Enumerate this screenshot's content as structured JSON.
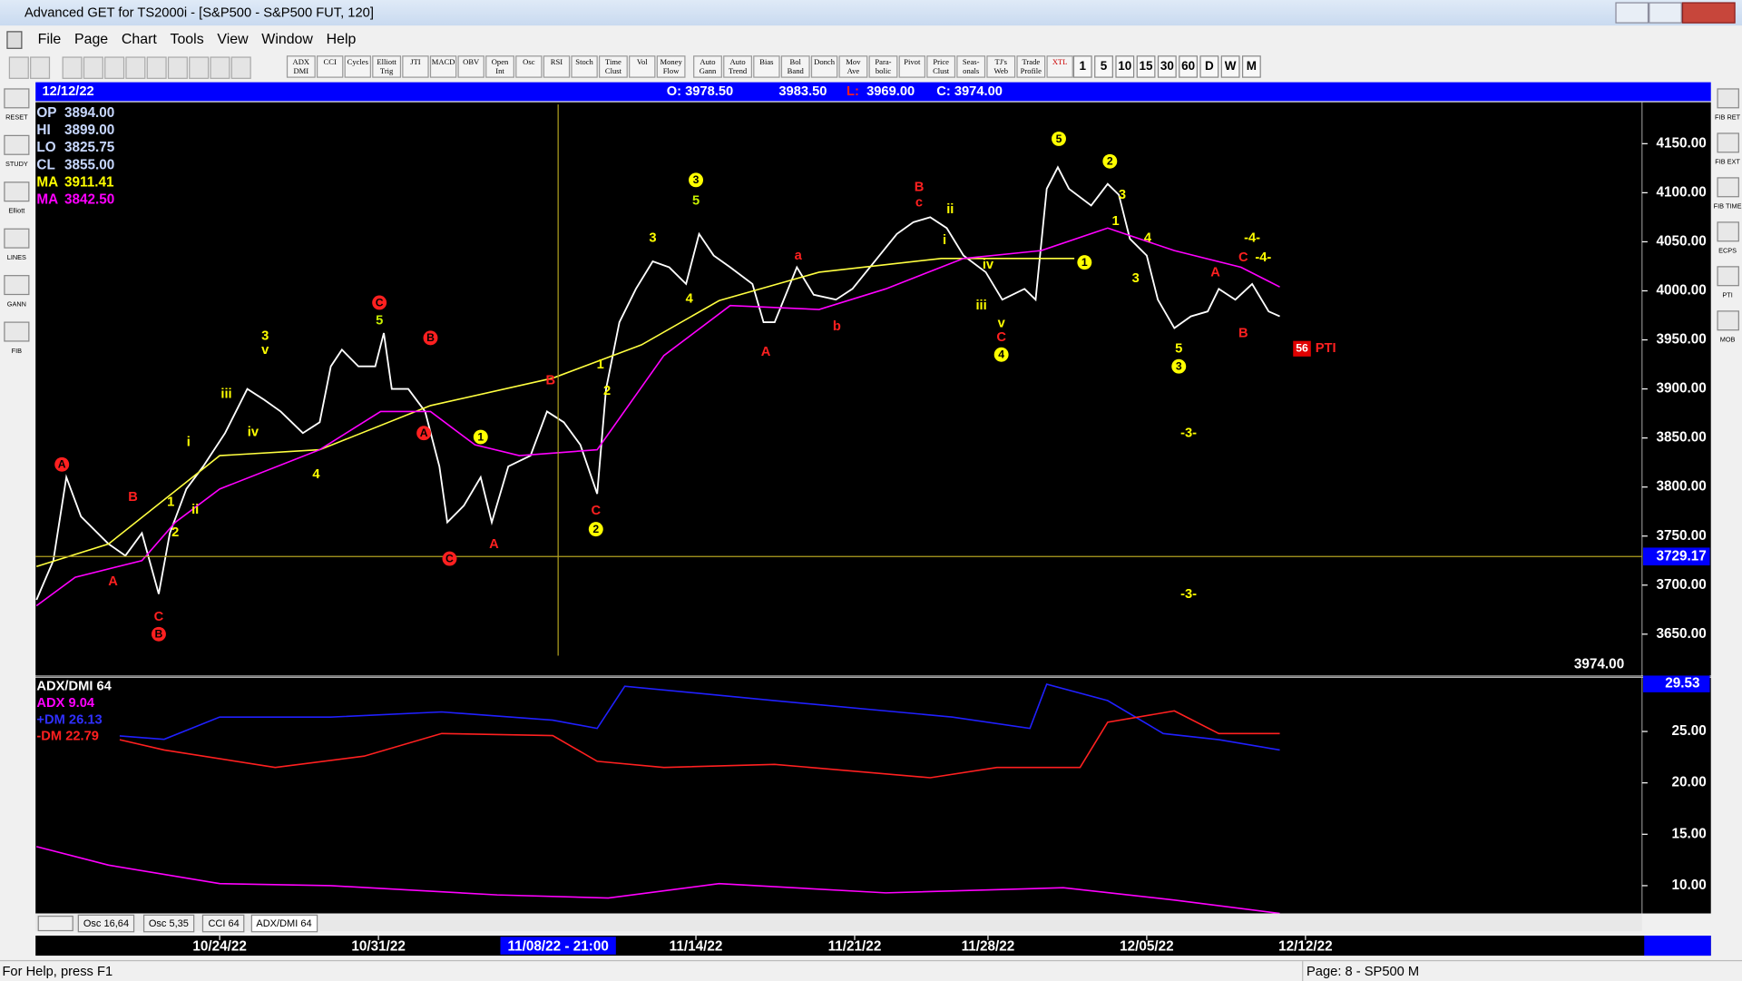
{
  "window": {
    "title": "Advanced GET for TS2000i - [S&P500 - S&P500 FUT, 120]"
  },
  "menu": [
    "File",
    "Page",
    "Chart",
    "Tools",
    "View",
    "Window",
    "Help"
  ],
  "toolbar": [
    "ADX DMI",
    "CCI",
    "Cycles",
    "Elliott Trig",
    "JTI",
    "MACD",
    "OBV",
    "Open Int",
    "Osc",
    "RSI",
    "Stoch",
    "Time Clust",
    "Vol",
    "Money Flow",
    "Auto Gann",
    "Auto Trend",
    "Bias",
    "Bol Band",
    "Donch",
    "Mov Ave",
    "Para-bolic",
    "Pivot",
    "Price Clust",
    "Seas-onals",
    "TJ's Web",
    "Trade Profile",
    "XTL"
  ],
  "intervals": [
    "1",
    "5",
    "10",
    "15",
    "30",
    "60",
    "D",
    "W",
    "M"
  ],
  "header": {
    "date": "12/12/22",
    "open": "O: 3978.50",
    "high": "3983.50",
    "low_label": "L:",
    "low": "3969.00",
    "close": "C: 3974.00"
  },
  "info": [
    {
      "label": "OP",
      "value": "3894.00",
      "color": "#c8d8ff"
    },
    {
      "label": "HI",
      "value": "3899.00",
      "color": "#c8d8ff"
    },
    {
      "label": "LO",
      "value": "3825.75",
      "color": "#c8d8ff"
    },
    {
      "label": "CL",
      "value": "3855.00",
      "color": "#c8d8ff"
    },
    {
      "label": "MA",
      "value": "3911.41",
      "color": "#ffff00"
    },
    {
      "label": "MA",
      "value": "3842.50",
      "color": "#ff00ff"
    }
  ],
  "indicator_info": [
    {
      "text": "ADX/DMI 64",
      "color": "#ffffff"
    },
    {
      "text": "ADX 9.04",
      "color": "#ff00ff"
    },
    {
      "text": "+DM 26.13",
      "color": "#3030ff"
    },
    {
      "text": "-DM 22.79",
      "color": "#ff2020"
    }
  ],
  "tabs": [
    "Osc 16,64",
    "Osc 5,35",
    "CCI 64",
    "ADX/DMI 64"
  ],
  "left_tools": [
    "RESET",
    "STUDY",
    "Elliott",
    "LINES",
    "GANN",
    "FIB"
  ],
  "right_tools": [
    "FIB RET",
    "FIB EXT",
    "FIB TIME",
    "ECPS",
    "PTI",
    "MOB"
  ],
  "status": {
    "left": "For Help, press F1",
    "right": "Page: 8 - SP500 M"
  },
  "chart_data": [
    {
      "type": "line",
      "xlim": [
        -5.8,
        44.8
      ],
      "xticks": [
        {
          "value": 0,
          "label": "10/24/22"
        },
        {
          "value": 5,
          "label": "10/31/22"
        },
        {
          "value": 15,
          "label": "11/14/22"
        },
        {
          "value": 20,
          "label": "11/21/22"
        },
        {
          "value": 24.2,
          "label": "11/28/22"
        },
        {
          "value": 29.2,
          "label": "12/05/22"
        },
        {
          "value": 34.2,
          "label": "12/12/22"
        }
      ],
      "ylim": [
        3610,
        4190
      ],
      "yticks": [
        {
          "value": 4150,
          "label": "4150.00"
        },
        {
          "value": 4100,
          "label": "4100.00"
        },
        {
          "value": 4050,
          "label": "4050.00"
        },
        {
          "value": 4000,
          "label": "4000.00"
        },
        {
          "value": 3950,
          "label": "3950.00"
        },
        {
          "value": 3900,
          "label": "3900.00"
        },
        {
          "value": 3850,
          "label": "3850.00"
        },
        {
          "value": 3800,
          "label": "3800.00"
        },
        {
          "value": 3750,
          "label": "3750.00"
        },
        {
          "value": 3700,
          "label": "3700.00"
        },
        {
          "value": 3650,
          "label": "3650.00"
        }
      ],
      "series": [
        {
          "color": "#ffffff",
          "x": [
            -5.77,
            -5.24,
            -4.83,
            -4.37,
            -3.5,
            -2.97,
            -2.45,
            -1.92,
            -1.57,
            -1.05,
            -0.52,
            0.17,
            0.87,
            1.4,
            1.92,
            2.62,
            3.15,
            3.5,
            3.85,
            4.37,
            4.9,
            5.17,
            5.42,
            5.94,
            6.47,
            6.92,
            7.17,
            7.69,
            8.22,
            8.57,
            9.09,
            9.79,
            10.31,
            10.84,
            11.36,
            11.89,
            12.17,
            12.59,
            13.11,
            13.64,
            14.16,
            14.69,
            15.1,
            15.56,
            16.08,
            16.78,
            17.13,
            17.48,
            18.18,
            18.71,
            19.41,
            19.93,
            20.63,
            21.33,
            21.85,
            22.38,
            22.9,
            23.43,
            24.13,
            24.65,
            25.35,
            25.7,
            26.05,
            26.4,
            26.75,
            27.45,
            27.97,
            28.32,
            28.67,
            29.2,
            29.55,
            30.07,
            30.59,
            31.12,
            31.47,
            31.99,
            32.52,
            33.04,
            33.39
          ],
          "values": [
            3685,
            3725,
            3810,
            3770,
            3742,
            3730,
            3753,
            3691,
            3753,
            3798,
            3821,
            3855,
            3900,
            3889,
            3877,
            3855,
            3866,
            3923,
            3940,
            3923,
            3923,
            3957,
            3900,
            3900,
            3877,
            3821,
            3764,
            3781,
            3810,
            3764,
            3821,
            3832,
            3877,
            3866,
            3843,
            3793,
            3900,
            3968,
            4002,
            4030,
            4024,
            4007,
            4058,
            4036,
            4024,
            4007,
            3968,
            3968,
            4024,
            3996,
            3991,
            4002,
            4030,
            4058,
            4070,
            4075,
            4064,
            4036,
            4019,
            3991,
            4002,
            3991,
            4104,
            4126,
            4104,
            4087,
            4109,
            4098,
            4053,
            4036,
            3991,
            3962,
            3974,
            3979,
            4002,
            3991,
            4007,
            3979,
            3974
          ]
        },
        {
          "color": "#ffff40",
          "x": [
            -5.77,
            -3.5,
            0,
            3.15,
            6.64,
            10.49,
            13.29,
            15.73,
            18.88,
            22.73,
            26.92
          ],
          "values": [
            3719,
            3742,
            3832,
            3838,
            3883,
            3911,
            3945,
            3990,
            4019,
            4033,
            4033
          ]
        },
        {
          "color": "#ff00ff",
          "x": [
            -5.77,
            -4.55,
            -2.45,
            -1.4,
            0,
            3.15,
            5.07,
            6.64,
            8.04,
            9.44,
            11.89,
            13.99,
            16.08,
            18.88,
            20.98,
            23.43,
            25.87,
            27.97,
            30.07,
            32.17,
            33.39
          ],
          "values": [
            3679,
            3708,
            3725,
            3764,
            3798,
            3838,
            3877,
            3877,
            3843,
            3832,
            3838,
            3934,
            3985,
            3981,
            4002,
            4033,
            4041,
            4064,
            4041,
            4024,
            4004
          ]
        }
      ],
      "cursor": {
        "x": {
          "value": 10.66,
          "label": "11/08/22 - 21:00"
        },
        "y": {
          "value": 3729.17,
          "label": "3729.17"
        }
      },
      "last": {
        "value": 3974,
        "label": "3974.00"
      },
      "annotations": [
        {
          "text": "A",
          "color": "#ff2020",
          "x": -4.97,
          "y": 3823,
          "circled": true
        },
        {
          "text": "B",
          "color": "#ff2020",
          "x": -2.73,
          "y": 3790,
          "circled": false
        },
        {
          "text": "A",
          "color": "#ff2020",
          "x": -3.36,
          "y": 3704,
          "circled": false
        },
        {
          "text": "C",
          "color": "#ff2020",
          "x": -1.92,
          "y": 3668,
          "circled": false
        },
        {
          "text": "B",
          "color": "#ff2020",
          "x": -1.92,
          "y": 3650,
          "circled": true
        },
        {
          "text": "1",
          "color": "#ffff00",
          "x": -1.54,
          "y": 3785,
          "circled": false
        },
        {
          "text": "2",
          "color": "#ffff00",
          "x": -1.4,
          "y": 3754,
          "circled": false
        },
        {
          "text": "ii",
          "color": "#ffff00",
          "x": -0.77,
          "y": 3777,
          "circled": false
        },
        {
          "text": "i",
          "color": "#ffff00",
          "x": -0.98,
          "y": 3846,
          "circled": false
        },
        {
          "text": "iii",
          "color": "#ffff00",
          "x": 0.21,
          "y": 3895,
          "circled": false
        },
        {
          "text": "iv",
          "color": "#ffff00",
          "x": 1.05,
          "y": 3856,
          "circled": false
        },
        {
          "text": "3",
          "color": "#ffff00",
          "x": 1.43,
          "y": 3954,
          "circled": false
        },
        {
          "text": "v",
          "color": "#ffff00",
          "x": 1.43,
          "y": 3940,
          "circled": false
        },
        {
          "text": "4",
          "color": "#ffff00",
          "x": 3.04,
          "y": 3813,
          "circled": false
        },
        {
          "text": "C",
          "color": "#ff2020",
          "x": 5.03,
          "y": 3988,
          "circled": true
        },
        {
          "text": "5",
          "color": "#c8f000",
          "x": 5.03,
          "y": 3970,
          "circled": false
        },
        {
          "text": "B",
          "color": "#ff2020",
          "x": 6.64,
          "y": 3952,
          "circled": true
        },
        {
          "text": "A",
          "color": "#ff2020",
          "x": 6.43,
          "y": 3855,
          "circled": true
        },
        {
          "text": "C",
          "color": "#ff2020",
          "x": 7.24,
          "y": 3727,
          "circled": true
        },
        {
          "text": "A",
          "color": "#ff2020",
          "x": 8.64,
          "y": 3742,
          "circled": false
        },
        {
          "text": "1",
          "color": "#ffff00",
          "x": 8.22,
          "y": 3851,
          "circled": true
        },
        {
          "text": "B",
          "color": "#ff2020",
          "x": 10.42,
          "y": 3909,
          "circled": false
        },
        {
          "text": "1",
          "color": "#ffff00",
          "x": 11.99,
          "y": 3925,
          "circled": false
        },
        {
          "text": "2",
          "color": "#ffff00",
          "x": 12.2,
          "y": 3898,
          "circled": false
        },
        {
          "text": "C",
          "color": "#ff2020",
          "x": 11.85,
          "y": 3776,
          "circled": false
        },
        {
          "text": "2",
          "color": "#ffff00",
          "x": 11.85,
          "y": 3757,
          "circled": true
        },
        {
          "text": "3",
          "color": "#ffff00",
          "x": 13.64,
          "y": 4054,
          "circled": false
        },
        {
          "text": "3",
          "color": "#ffff00",
          "x": 15.0,
          "y": 4113,
          "circled": true
        },
        {
          "text": "5",
          "color": "#c8f000",
          "x": 15.0,
          "y": 4092,
          "circled": false
        },
        {
          "text": "4",
          "color": "#ffff00",
          "x": 14.79,
          "y": 3992,
          "circled": false
        },
        {
          "text": "a",
          "color": "#ff2020",
          "x": 18.22,
          "y": 4036,
          "circled": false
        },
        {
          "text": "A",
          "color": "#ff2020",
          "x": 17.2,
          "y": 3938,
          "circled": false
        },
        {
          "text": "b",
          "color": "#ff2020",
          "x": 19.44,
          "y": 3964,
          "circled": false
        },
        {
          "text": "B",
          "color": "#ff2020",
          "x": 22.03,
          "y": 4106,
          "circled": false
        },
        {
          "text": "c",
          "color": "#ff2020",
          "x": 22.03,
          "y": 4090,
          "circled": false
        },
        {
          "text": "ii",
          "color": "#ffff00",
          "x": 23.01,
          "y": 4083,
          "circled": false
        },
        {
          "text": "i",
          "color": "#ffff00",
          "x": 22.83,
          "y": 4052,
          "circled": false
        },
        {
          "text": "iv",
          "color": "#ffff00",
          "x": 24.2,
          "y": 4027,
          "circled": false
        },
        {
          "text": "iii",
          "color": "#ffff00",
          "x": 23.99,
          "y": 3985,
          "circled": false
        },
        {
          "text": "v",
          "color": "#ffff00",
          "x": 24.62,
          "y": 3967,
          "circled": false
        },
        {
          "text": "C",
          "color": "#ff2020",
          "x": 24.62,
          "y": 3953,
          "circled": false
        },
        {
          "text": "4",
          "color": "#ffff00",
          "x": 24.62,
          "y": 3935,
          "circled": true
        },
        {
          "text": "5",
          "color": "#ffff00",
          "x": 26.43,
          "y": 4155,
          "circled": true
        },
        {
          "text": "2",
          "color": "#ffff00",
          "x": 28.04,
          "y": 4132,
          "circled": true
        },
        {
          "text": "1",
          "color": "#ffff00",
          "x": 27.24,
          "y": 4029,
          "circled": true
        },
        {
          "text": "3",
          "color": "#ffff00",
          "x": 28.43,
          "y": 4098,
          "circled": false
        },
        {
          "text": "1",
          "color": "#ffff00",
          "x": 28.22,
          "y": 4071,
          "circled": false
        },
        {
          "text": "4",
          "color": "#ffff00",
          "x": 29.23,
          "y": 4054,
          "circled": false
        },
        {
          "text": "3",
          "color": "#ffff00",
          "x": 28.85,
          "y": 4013,
          "circled": false
        },
        {
          "text": "-4-",
          "color": "#ffff00",
          "x": 32.52,
          "y": 4054,
          "circled": false
        },
        {
          "text": "C",
          "color": "#ff2020",
          "x": 32.24,
          "y": 4034,
          "circled": false
        },
        {
          "text": "-4-",
          "color": "#ffff00",
          "x": 32.87,
          "y": 4034,
          "circled": false
        },
        {
          "text": "A",
          "color": "#ff2020",
          "x": 31.36,
          "y": 4019,
          "circled": false
        },
        {
          "text": "B",
          "color": "#ff2020",
          "x": 32.24,
          "y": 3957,
          "circled": false
        },
        {
          "text": "5",
          "color": "#ffff00",
          "x": 30.21,
          "y": 3941,
          "circled": false
        },
        {
          "text": "3",
          "color": "#ffff00",
          "x": 30.21,
          "y": 3923,
          "circled": true
        },
        {
          "text": "-3-",
          "color": "#ffff00",
          "x": 30.52,
          "y": 3855,
          "circled": false
        },
        {
          "text": "-3-",
          "color": "#ffff00",
          "x": 30.52,
          "y": 3691,
          "circled": false
        }
      ],
      "pti": {
        "count": "56",
        "text": "PTI",
        "x": 34.09,
        "y": 3941
      }
    },
    {
      "type": "line",
      "xlim": [
        -5.8,
        44.8
      ],
      "ylim": [
        7.3,
        30
      ],
      "yticks": [
        {
          "value": 25,
          "label": "25.00"
        },
        {
          "value": 20,
          "label": "20.00"
        },
        {
          "value": 15,
          "label": "15.00"
        },
        {
          "value": 10,
          "label": "10.00"
        }
      ],
      "marker": {
        "value": 29.53,
        "label": "29.53"
      },
      "series": [
        {
          "color": "#2020ff",
          "x": [
            -3.15,
            -1.75,
            0,
            3.5,
            6.99,
            10.49,
            11.89,
            12.76,
            17.48,
            23.08,
            25.52,
            26.05,
            27.97,
            29.72,
            31.47,
            33.39
          ],
          "values": [
            24.57,
            24.24,
            26.4,
            26.4,
            26.9,
            26.1,
            25.3,
            29.4,
            28.0,
            26.4,
            25.3,
            29.6,
            28.0,
            24.8,
            24.2,
            23.2
          ]
        },
        {
          "color": "#ff2020",
          "x": [
            -3.15,
            -1.75,
            1.75,
            4.55,
            6.99,
            10.49,
            11.89,
            13.99,
            17.48,
            22.38,
            24.48,
            27.1,
            27.97,
            30.07,
            31.47,
            33.39
          ],
          "values": [
            24.2,
            23.2,
            21.5,
            22.6,
            24.8,
            24.6,
            22.1,
            21.5,
            21.8,
            20.5,
            21.5,
            21.5,
            25.9,
            27.0,
            24.8,
            24.8
          ]
        },
        {
          "color": "#ff00ff",
          "x": [
            -5.77,
            -3.5,
            0,
            3.5,
            8.74,
            12.24,
            15.73,
            20.98,
            26.57,
            30.07,
            33.39
          ],
          "values": [
            13.8,
            12.0,
            10.2,
            10.0,
            9.1,
            8.8,
            10.2,
            9.3,
            9.8,
            8.6,
            7.3
          ]
        }
      ]
    }
  ]
}
